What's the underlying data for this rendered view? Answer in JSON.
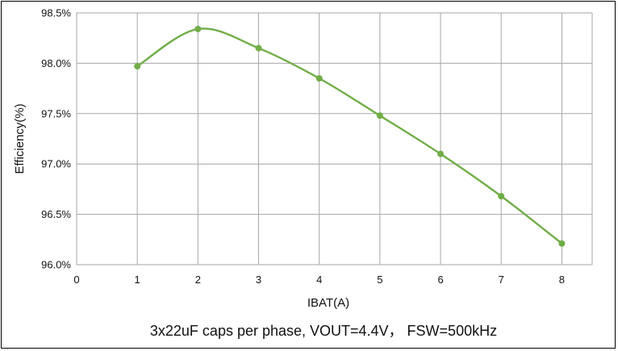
{
  "chart_data": {
    "type": "line",
    "title": "",
    "caption": "3x22uF caps per phase, VOUT=4.4V， FSW=500kHz",
    "xlabel": "IBAT(A)",
    "ylabel": "Efficiency(%)",
    "xlim": [
      0,
      8.5
    ],
    "ylim": [
      96.0,
      98.5
    ],
    "x_ticks": [
      "0",
      "1",
      "2",
      "3",
      "4",
      "5",
      "6",
      "7",
      "8"
    ],
    "y_ticks": [
      "96.0%",
      "96.5%",
      "97.0%",
      "97.5%",
      "98.0%",
      "98.5%"
    ],
    "grid": true,
    "legend": "none",
    "series": [
      {
        "color": "#70ad47",
        "x": [
          1,
          2,
          3,
          4,
          5,
          6,
          7,
          8
        ],
        "y": [
          97.97,
          98.34,
          98.15,
          97.85,
          97.48,
          97.1,
          96.68,
          96.21
        ]
      }
    ]
  }
}
